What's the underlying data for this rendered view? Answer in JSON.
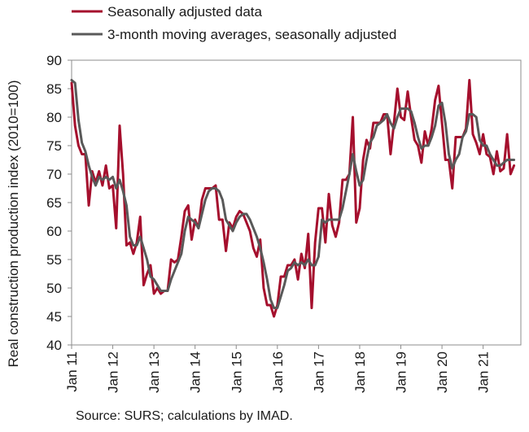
{
  "source_note": "Source: SURS; calculations by IMAD.",
  "colors": {
    "series1": "#a50f2d",
    "series2": "#595959",
    "axis": "#8c8c8c"
  },
  "chart_data": {
    "type": "line",
    "title": "",
    "xlabel": "",
    "ylabel": "Real construction production index (2010=100)",
    "ylim": [
      40,
      90
    ],
    "yticks": [
      40,
      45,
      50,
      55,
      60,
      65,
      70,
      75,
      80,
      85,
      90
    ],
    "xlim": [
      0,
      131
    ],
    "x_tick_labels": [
      "Jan 11",
      "Jan 12",
      "Jan 13",
      "Jan 14",
      "Jan 15",
      "Jan 16",
      "Jan 17",
      "Jan 18",
      "Jan 19",
      "Jan 20",
      "Jan 21"
    ],
    "x_tick_positions": [
      0,
      12,
      24,
      36,
      48,
      60,
      72,
      84,
      96,
      108,
      120
    ],
    "grid": false,
    "legend": "top-left",
    "series": [
      {
        "name": "Seasonally adjusted data",
        "values": [
          86,
          78.5,
          75,
          73.5,
          73.5,
          64.5,
          70.5,
          68.5,
          70.5,
          68,
          71.5,
          67.5,
          68,
          60.5,
          78.5,
          70,
          57.5,
          58,
          56,
          58,
          62.5,
          50.5,
          52.5,
          54,
          49,
          50,
          49,
          49.5,
          49.5,
          55,
          54.5,
          55,
          59,
          63.5,
          64.5,
          58.5,
          62,
          60.5,
          65.5,
          67.5,
          67.5,
          67.5,
          68,
          62,
          62,
          56.5,
          61.5,
          60.5,
          62.5,
          63.5,
          63,
          61.5,
          60,
          57,
          55.5,
          58.5,
          50,
          47,
          47,
          45,
          47,
          52,
          52,
          54,
          54,
          55,
          51.5,
          56,
          53.5,
          59.5,
          46.5,
          58,
          64,
          64,
          58,
          66.5,
          61,
          59,
          61.5,
          69,
          69,
          70,
          80,
          61.5,
          64,
          72.5,
          76,
          74.5,
          79,
          79,
          79,
          80.5,
          80.5,
          73.5,
          79,
          85,
          80,
          79.5,
          84.5,
          80,
          76,
          75,
          72,
          77.5,
          75,
          78,
          83,
          85.5,
          79,
          72.5,
          72.5,
          67.5,
          76.5,
          76.5,
          76.5,
          78,
          86.5,
          77,
          75.5,
          73.5,
          77,
          73.5,
          73,
          70,
          74,
          70.5,
          71,
          77,
          70,
          71.5
        ]
      },
      {
        "name": "3-month moving averages, seasonally adjusted",
        "values": [
          86.5,
          86,
          79.5,
          75.5,
          74,
          71.5,
          69.5,
          68,
          69.5,
          69,
          69.5,
          69,
          69.5,
          67.5,
          69,
          67,
          64.5,
          59,
          57.5,
          57.5,
          59,
          57,
          55,
          52,
          51.5,
          50.5,
          49.5,
          49.5,
          49.5,
          51.5,
          53,
          54.5,
          56,
          60,
          62.5,
          62,
          61.5,
          60.5,
          63,
          65.5,
          67,
          67.5,
          67.5,
          67,
          65.5,
          62,
          61,
          60,
          61.5,
          62.5,
          63,
          63,
          62,
          60.5,
          59,
          57,
          54.5,
          51.5,
          48,
          46.5,
          46.5,
          48.5,
          50.5,
          53,
          53.5,
          54.5,
          54,
          54.5,
          54,
          55,
          54,
          54,
          55.5,
          62,
          61.5,
          62,
          62,
          62,
          62,
          64,
          67,
          70,
          73.5,
          70.5,
          68,
          69,
          72.5,
          75.5,
          76.5,
          78.5,
          79,
          79.5,
          80.5,
          79,
          78,
          80,
          81.5,
          81.5,
          81.5,
          81,
          79,
          76.5,
          74.5,
          75,
          75,
          76.5,
          78.5,
          82,
          82.5,
          79,
          73.5,
          71,
          72.5,
          73.5,
          76.5,
          77.5,
          80.5,
          80.5,
          80,
          76,
          75,
          75,
          73.5,
          72.5,
          71.5,
          71.5,
          72,
          72.5,
          72.5,
          72.5
        ]
      }
    ]
  }
}
